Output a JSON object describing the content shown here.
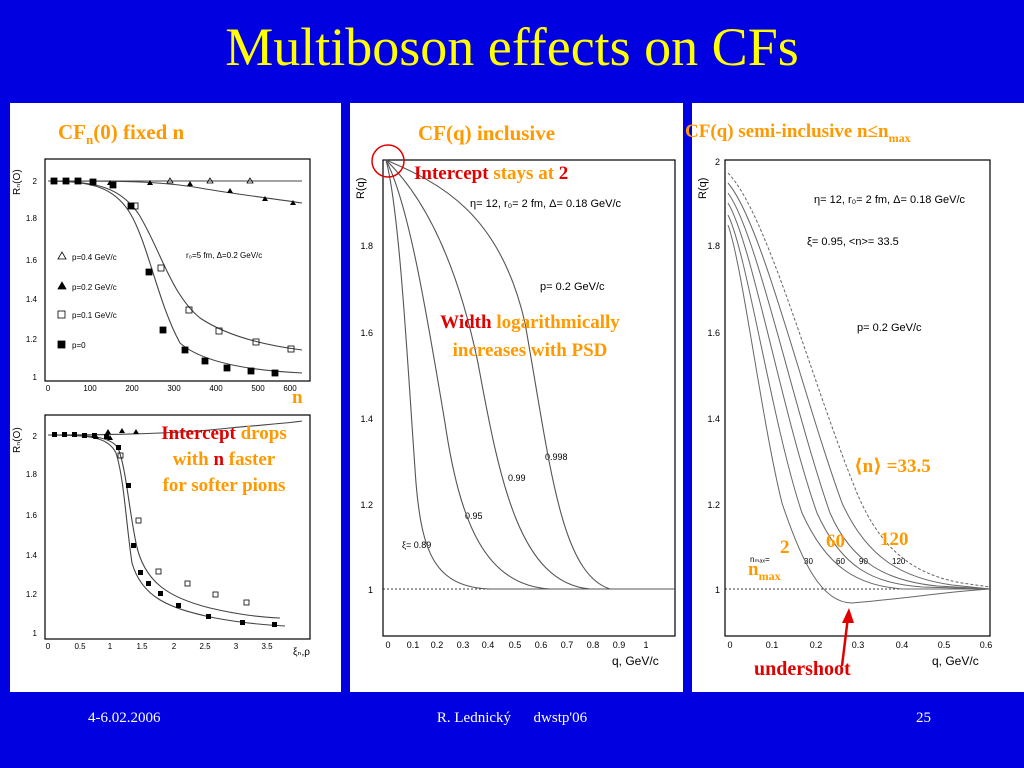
{
  "slide": {
    "title": "Multiboson effects on CFs"
  },
  "left_panel": {
    "heading": {
      "cf": "CF",
      "sub": "n",
      "rest": "(0) fixed n"
    },
    "top_plot": {
      "y_label": "Rₙ(O)",
      "y_ticks": [
        "2",
        "1.8",
        "1.6",
        "1.4",
        "1.2",
        "1"
      ],
      "x_ticks": [
        "0",
        "100",
        "200",
        "300",
        "400",
        "500",
        "600"
      ],
      "x_label": "n",
      "legend": [
        "p=0.4 GeV/c",
        "p=0.2 GeV/c",
        "p=0.1 GeV/c",
        "p=0"
      ],
      "param_text": "r₀=5 fm, Δ=0.2 GeV/c"
    },
    "bottom_plot": {
      "y_label": "Rₙ(O)",
      "y_ticks": [
        "2",
        "1.8",
        "1.6",
        "1.4",
        "1.2",
        "1"
      ],
      "x_ticks": [
        "0",
        "0.5",
        "1",
        "1.5",
        "2",
        "2.5",
        "3",
        "3.5"
      ],
      "x_label": "ξₙ,ρ"
    },
    "annotation": {
      "line1_red": "Intercept",
      "line1_orange": " drops",
      "line2_orange": "with ",
      "line2_red": "n",
      "line2_orange2": " faster",
      "line3_orange": "for softer pions"
    },
    "n_label": "n"
  },
  "middle_panel": {
    "heading": "CF(q) inclusive",
    "intercept": {
      "red": "Intercept",
      "orange": " stays at ",
      "value": "2"
    },
    "width": {
      "red": "Width",
      "orange": " logarithmically",
      "line2": "increases with PSD"
    },
    "y_label": "R(q)",
    "y_ticks": [
      "1.8",
      "1.6",
      "1.4",
      "1.2",
      "1"
    ],
    "x_ticks": [
      "0",
      "0.1",
      "0.2",
      "0.3",
      "0.4",
      "0.5",
      "0.6",
      "0.7",
      "0.8",
      "0.9",
      "1"
    ],
    "x_label": "q, GeV/c",
    "params": "η= 12, r₀= 2 fm, Δ= 0.18 GeV/c",
    "p_text": "p= 0.2 GeV/c",
    "curve_labels": [
      "ξ= 0.89",
      "0.95",
      "0.99",
      "0.998"
    ]
  },
  "right_panel": {
    "heading": "CF(q) semi-inclusive n≤n",
    "heading_sub": "max",
    "y_label": "R(q)",
    "y_ticks": [
      "2",
      "1.8",
      "1.6",
      "1.4",
      "1.2",
      "1"
    ],
    "x_ticks": [
      "0",
      "0.1",
      "0.2",
      "0.3",
      "0.4",
      "0.5",
      "0.6"
    ],
    "x_label": "q, GeV/c",
    "params": "η= 12, r₀= 2 fm, Δ= 0.18 GeV/c",
    "xi_text": "ξ= 0.95,  <n>= 33.5",
    "p_text": "p= 0.2 GeV/c",
    "mean_n": "⟨n⟩ =33.5",
    "small_labels": [
      "nₘₐₓ=",
      "2",
      "30",
      "60",
      "90",
      "120"
    ],
    "labels_orange": [
      "2",
      "60",
      "120"
    ],
    "nmax": "n",
    "nmax_sub": "max",
    "undershoot": "undershoot"
  },
  "footer": {
    "date": "4-6.02.2006",
    "author": "R. Lednický      dwstp'06",
    "page": "25"
  }
}
